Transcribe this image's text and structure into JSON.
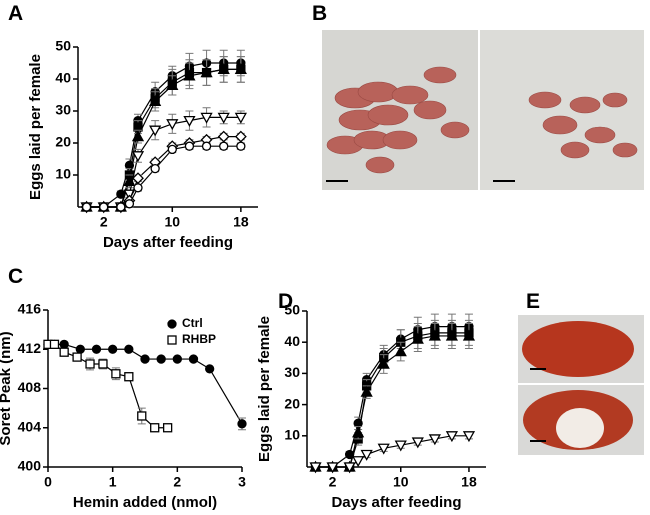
{
  "panel_labels": [
    "A",
    "B",
    "C",
    "D",
    "E"
  ],
  "chart_data": [
    {
      "type": "line",
      "xlabel": "Days after feeding",
      "ylabel": "Eggs laid per female",
      "xlim": [
        -1,
        20
      ],
      "ylim": [
        0,
        50
      ],
      "xticks": [
        2,
        10,
        18
      ],
      "yticks": [
        10,
        20,
        30,
        40,
        50
      ],
      "series": [
        {
          "marker": "circle-filled",
          "color": "#000000",
          "x": [
            0,
            2,
            4,
            5,
            6,
            8,
            10,
            12,
            14,
            16,
            18
          ],
          "values": [
            0,
            0,
            4,
            13,
            27,
            36,
            41,
            44,
            45,
            45,
            45
          ],
          "errors": [
            0,
            0,
            1,
            2,
            2,
            3,
            3,
            4,
            4,
            4,
            4
          ]
        },
        {
          "marker": "square-filled",
          "color": "#000000",
          "x": [
            0,
            2,
            4,
            5,
            6,
            8,
            10,
            12,
            14,
            16,
            18
          ],
          "values": [
            0,
            0,
            0,
            10,
            25,
            34,
            39,
            42,
            42,
            43,
            43
          ],
          "errors": [
            0,
            0,
            0,
            2,
            2,
            3,
            4,
            4,
            4,
            4,
            4
          ]
        },
        {
          "marker": "triangle-filled",
          "color": "#000000",
          "x": [
            0,
            2,
            4,
            5,
            6,
            8,
            10,
            12,
            14,
            16,
            18
          ],
          "values": [
            0,
            0,
            0,
            8,
            22,
            33,
            38,
            41,
            42,
            43,
            43
          ],
          "errors": [
            0,
            0,
            0,
            2,
            2,
            3,
            3,
            4,
            4,
            4,
            4
          ]
        },
        {
          "marker": "triangle-down-open",
          "color": "#000000",
          "x": [
            0,
            2,
            4,
            5,
            6,
            8,
            10,
            12,
            14,
            16,
            18
          ],
          "values": [
            0,
            0,
            0,
            4,
            16,
            24,
            26,
            27,
            28,
            28,
            28
          ],
          "errors": [
            0,
            0,
            0,
            1,
            2,
            3,
            3,
            3,
            3,
            2,
            2
          ]
        },
        {
          "marker": "diamond-open",
          "color": "#000000",
          "x": [
            0,
            2,
            4,
            5,
            6,
            8,
            10,
            12,
            14,
            16,
            18
          ],
          "values": [
            0,
            0,
            0,
            2,
            9,
            14,
            19,
            20,
            21,
            22,
            22
          ],
          "errors": [
            0,
            0,
            0,
            1,
            1,
            1,
            1,
            1,
            1,
            1,
            1
          ]
        },
        {
          "marker": "circle-open",
          "color": "#000000",
          "x": [
            0,
            2,
            4,
            5,
            6,
            8,
            10,
            12,
            14,
            16,
            18
          ],
          "values": [
            0,
            0,
            0,
            1,
            6,
            12,
            18,
            19,
            19,
            19,
            19
          ],
          "errors": [
            0,
            0,
            0,
            1,
            1,
            1,
            1,
            1,
            1,
            1,
            1
          ]
        }
      ]
    },
    {
      "type": "line",
      "xlabel": "Hemin added (nmol)",
      "ylabel": "Soret Peak (nm)",
      "xlim": [
        0,
        3
      ],
      "ylim": [
        400,
        416
      ],
      "xticks": [
        0,
        1,
        2,
        3
      ],
      "yticks": [
        400,
        404,
        408,
        412,
        416
      ],
      "legend": "upper right",
      "series": [
        {
          "name": "Ctrl",
          "marker": "circle-filled",
          "color": "#000000",
          "x": [
            0,
            0.1,
            0.25,
            0.5,
            0.75,
            1,
            1.25,
            1.5,
            1.75,
            2,
            2.25,
            2.5,
            3
          ],
          "values": [
            412.5,
            412.5,
            412.5,
            412,
            412,
            412,
            412,
            411,
            411,
            411,
            411,
            410,
            404.4
          ],
          "errors": [
            0,
            0,
            0,
            0,
            0,
            0,
            0,
            0,
            0,
            0,
            0,
            0,
            0.6
          ]
        },
        {
          "name": "RHBP",
          "marker": "square-open",
          "color": "#000000",
          "x": [
            0,
            0.1,
            0.25,
            0.45,
            0.65,
            0.85,
            1.05,
            1.25,
            1.45,
            1.65,
            1.85
          ],
          "values": [
            412.5,
            412.5,
            411.7,
            411.2,
            410.5,
            410.5,
            409.5,
            409.2,
            405.2,
            404,
            404
          ],
          "errors": [
            0,
            0,
            0.3,
            0.4,
            0.6,
            0.5,
            0.6,
            0.4,
            0.8,
            0.2,
            0
          ]
        }
      ]
    },
    {
      "type": "line",
      "xlabel": "Days after feeding",
      "ylabel": "Eggs laid per female",
      "xlim": [
        -1,
        20
      ],
      "ylim": [
        0,
        50
      ],
      "xticks": [
        2,
        10,
        18
      ],
      "yticks": [
        10,
        20,
        30,
        40,
        50
      ],
      "series": [
        {
          "marker": "circle-filled",
          "color": "#000000",
          "x": [
            0,
            2,
            4,
            5,
            6,
            8,
            10,
            12,
            14,
            16,
            18
          ],
          "values": [
            0,
            0,
            4,
            14,
            28,
            36,
            41,
            44,
            45,
            45,
            45
          ],
          "errors": [
            0,
            0,
            1,
            2,
            2,
            3,
            3,
            4,
            4,
            4,
            4
          ]
        },
        {
          "marker": "square-filled",
          "color": "#000000",
          "x": [
            0,
            2,
            4,
            5,
            6,
            8,
            10,
            12,
            14,
            16,
            18
          ],
          "values": [
            0,
            0,
            0,
            9,
            26,
            35,
            40,
            42,
            43,
            43,
            43
          ],
          "errors": [
            0,
            0,
            0,
            2,
            2,
            3,
            4,
            4,
            4,
            4,
            4
          ]
        },
        {
          "marker": "triangle-filled",
          "color": "#000000",
          "x": [
            0,
            2,
            4,
            5,
            6,
            8,
            10,
            12,
            14,
            16,
            18
          ],
          "values": [
            0,
            0,
            0,
            11,
            24,
            33,
            37,
            41,
            42,
            42,
            42
          ],
          "errors": [
            0,
            0,
            0,
            2,
            2,
            3,
            3,
            4,
            4,
            4,
            4
          ]
        },
        {
          "marker": "triangle-down-open",
          "color": "#000000",
          "x": [
            0,
            2,
            4,
            5,
            6,
            8,
            10,
            12,
            14,
            16,
            18
          ],
          "values": [
            0,
            0,
            0,
            2,
            4,
            6,
            7,
            8,
            9,
            10,
            10
          ],
          "errors": [
            0,
            0,
            0,
            0,
            1,
            1,
            1,
            1,
            1,
            1,
            1
          ]
        }
      ]
    }
  ]
}
